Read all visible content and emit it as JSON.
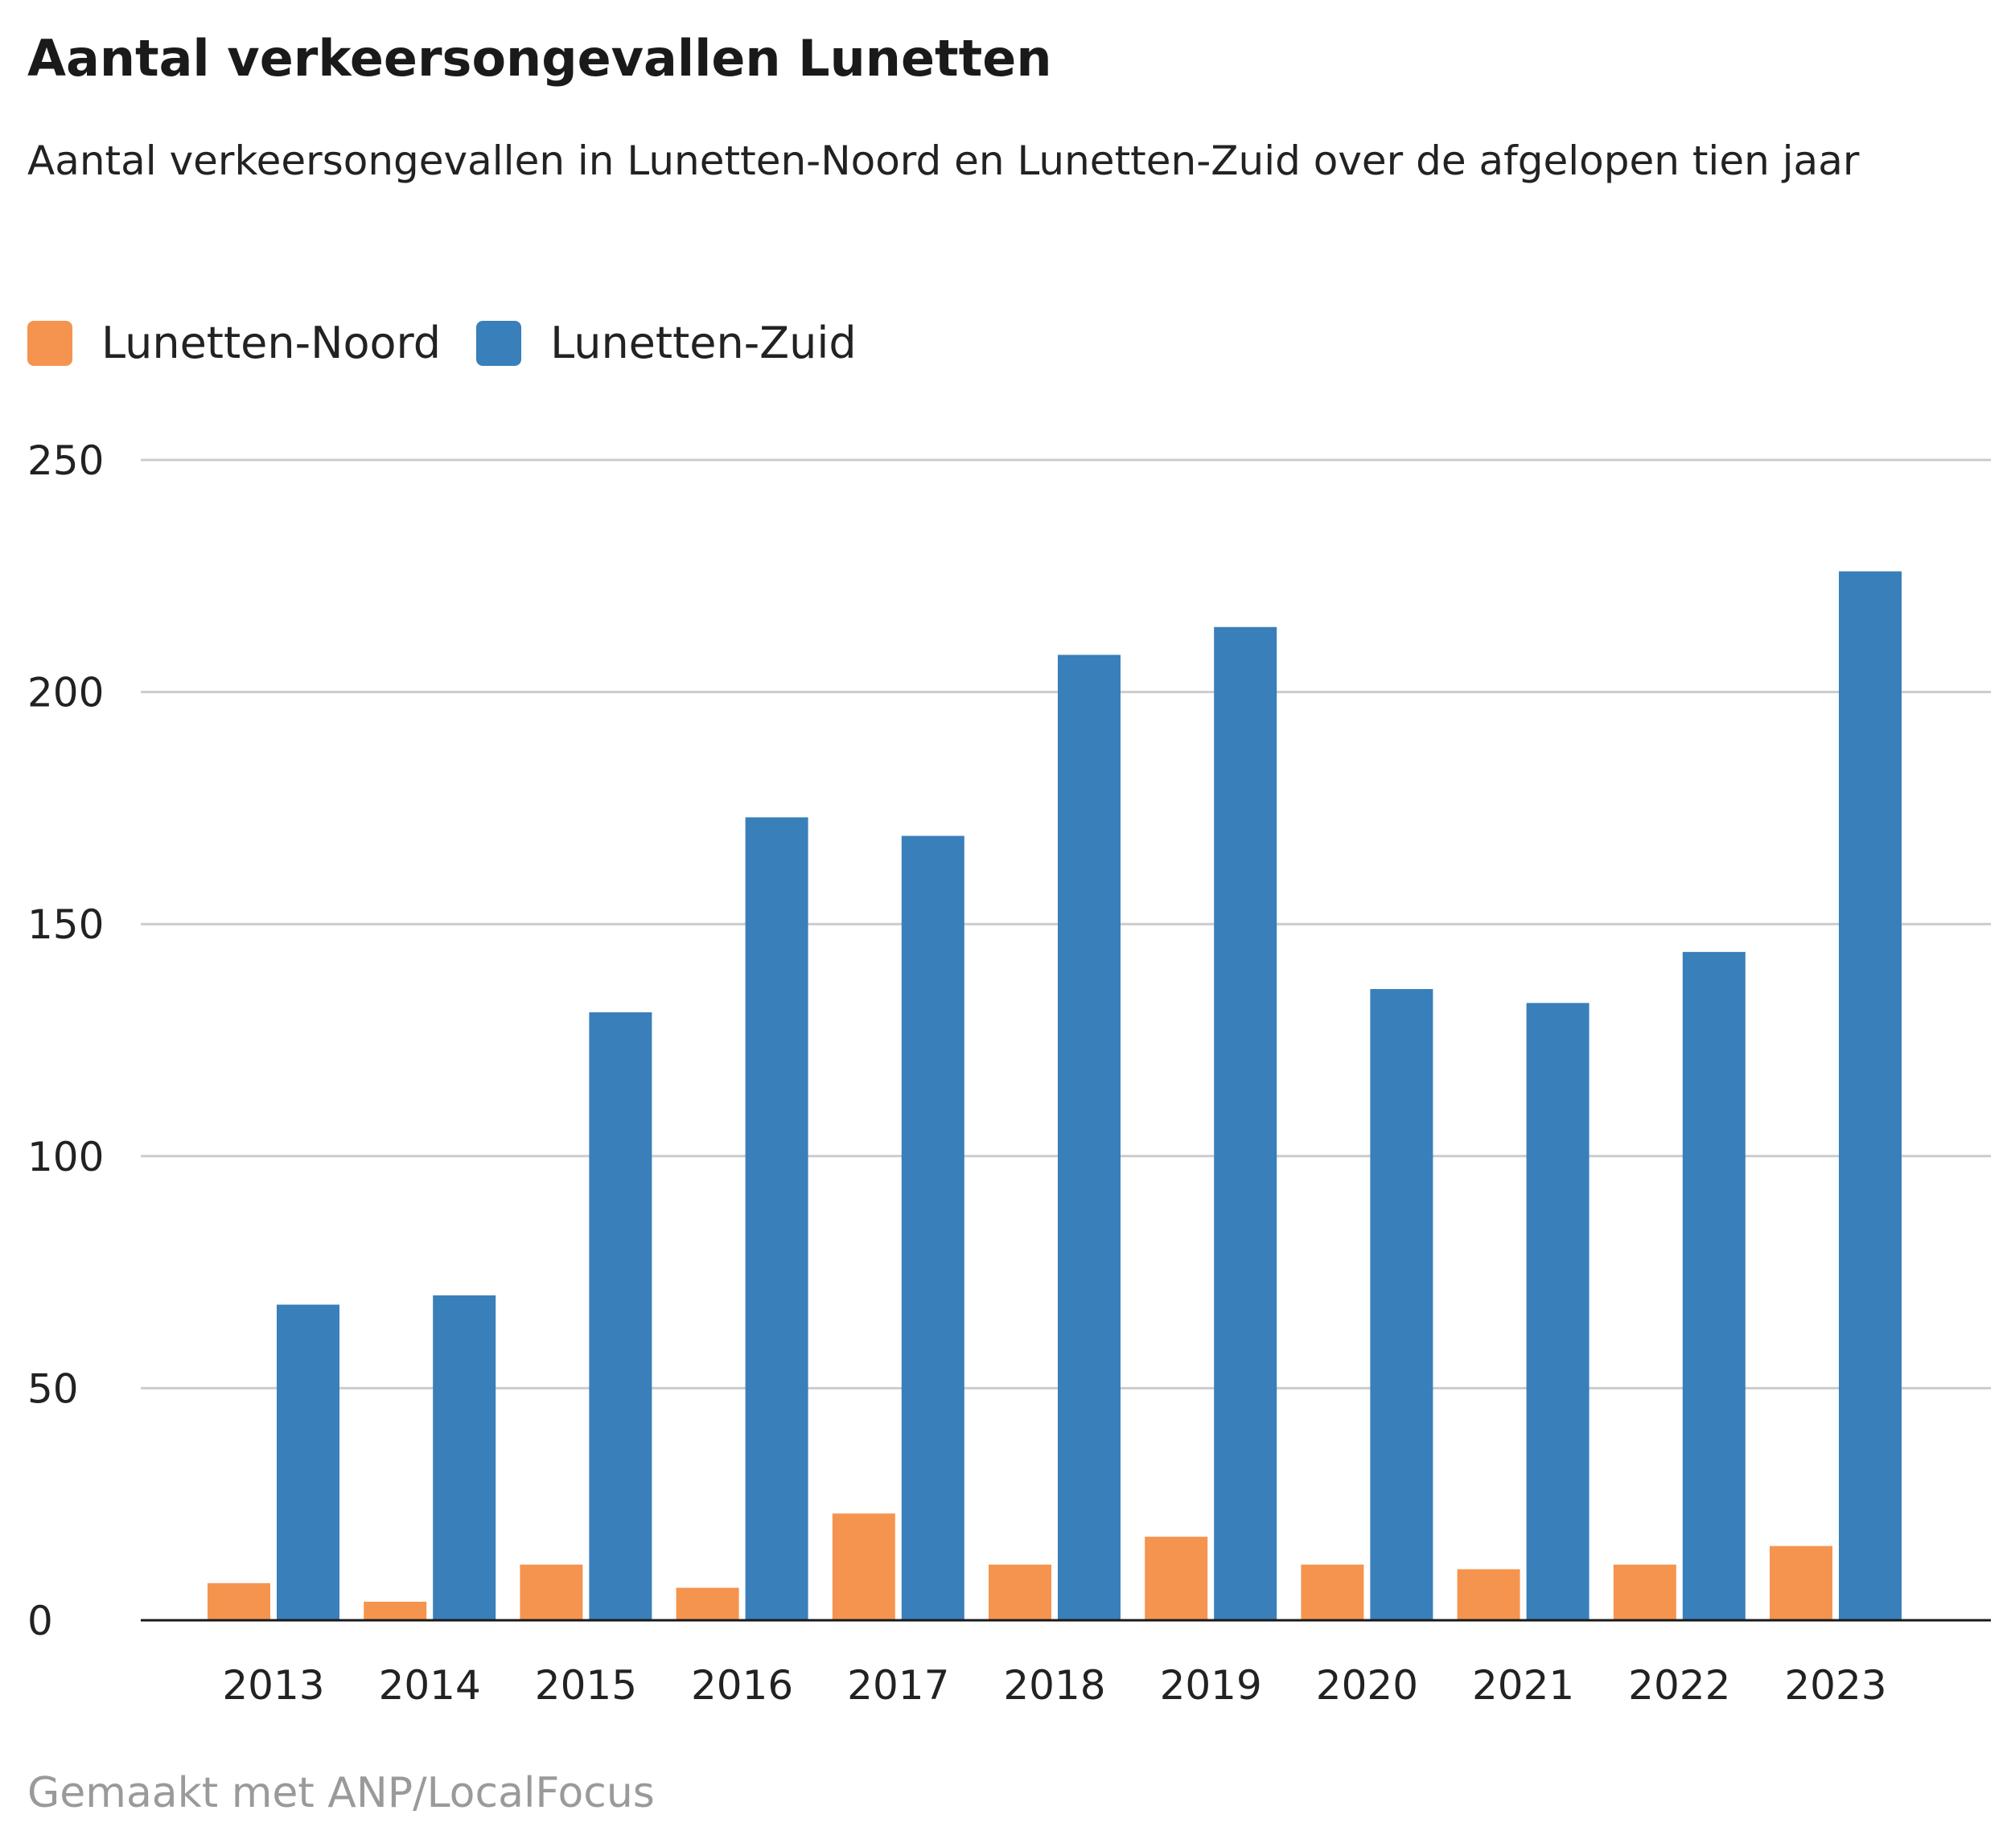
{
  "chart_data": {
    "type": "bar",
    "title": "Aantal verkeersongevallen Lunetten",
    "subtitle": "Aantal verkeersongevallen in Lunetten-Noord en Lunetten-Zuid over de afgelopen tien jaar",
    "categories": [
      "2013",
      "2014",
      "2015",
      "2016",
      "2017",
      "2018",
      "2019",
      "2020",
      "2021",
      "2022",
      "2023"
    ],
    "series": [
      {
        "name": "Lunetten-Noord",
        "color": "#f5944f",
        "values": [
          8,
          4,
          12,
          7,
          23,
          12,
          18,
          12,
          11,
          12,
          16
        ]
      },
      {
        "name": "Lunetten-Zuid",
        "color": "#397fba",
        "values": [
          68,
          70,
          131,
          173,
          169,
          208,
          214,
          136,
          133,
          144,
          226
        ]
      }
    ],
    "y_ticks": [
      "0",
      "50",
      "100",
      "150",
      "200",
      "250"
    ],
    "ylim": [
      0,
      250
    ],
    "grid": true,
    "legend_position": "top-left"
  },
  "footer": "Gemaakt met ANP/LocalFocus"
}
